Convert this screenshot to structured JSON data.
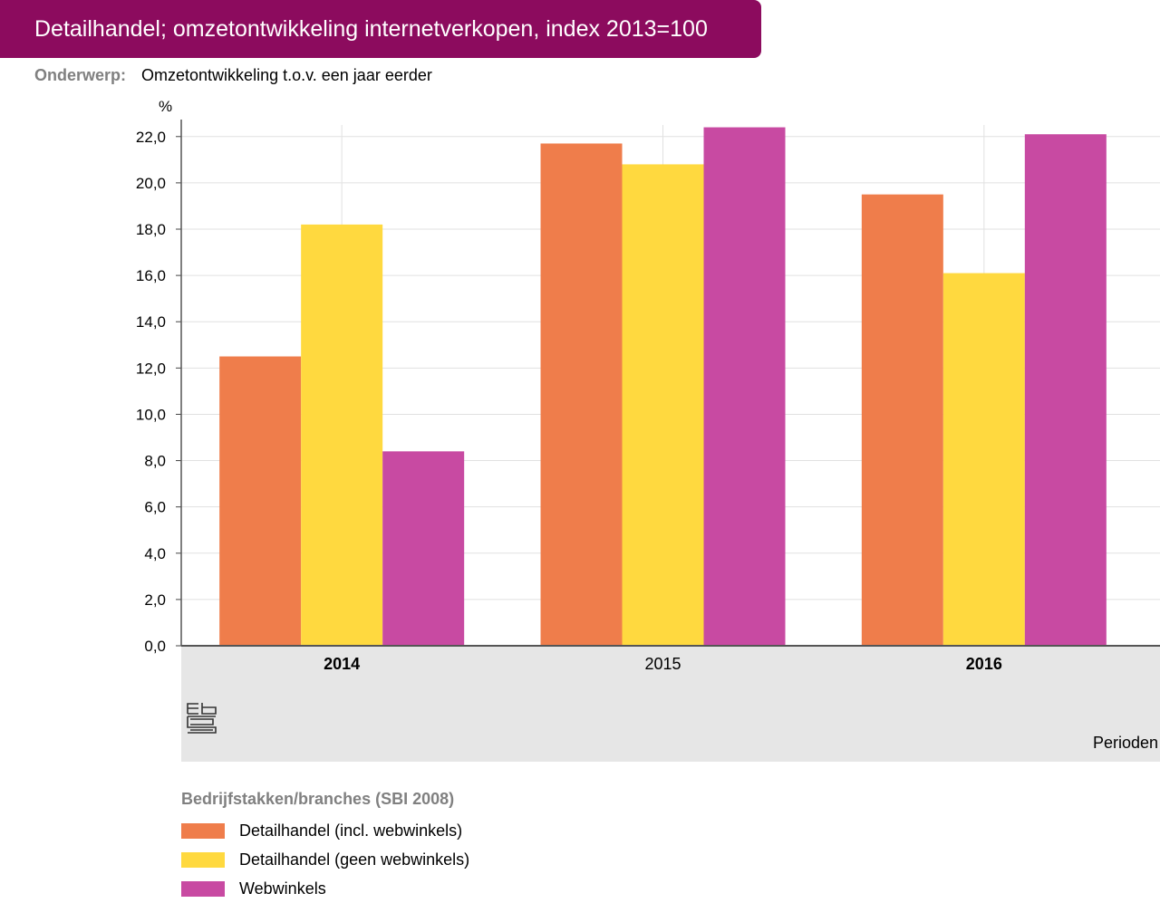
{
  "title": "Detailhandel; omzetontwikkeling internetverkopen, index 2013=100",
  "subject": {
    "label": "Onderwerp:",
    "value": "Omzetontwikkeling t.o.v. een jaar eerder"
  },
  "chart_data": {
    "type": "bar",
    "ylabel": "%",
    "xlabel": "Perioden",
    "ylim": [
      0,
      22.5
    ],
    "yticks": [
      "0,0",
      "2,0",
      "4,0",
      "6,0",
      "8,0",
      "10,0",
      "12,0",
      "14,0",
      "16,0",
      "18,0",
      "20,0",
      "22,0"
    ],
    "ytick_values": [
      0,
      2,
      4,
      6,
      8,
      10,
      12,
      14,
      16,
      18,
      20,
      22
    ],
    "categories": [
      "2014",
      "2015",
      "2016"
    ],
    "category_bold": [
      true,
      false,
      true
    ],
    "grid": true,
    "legend_title": "Bedrijfstakken/branches (SBI 2008)",
    "legend_position": "bottom",
    "series": [
      {
        "name": "Detailhandel (incl. webwinkels)",
        "color": "#ef7d4b",
        "values": [
          12.5,
          21.7,
          19.5
        ]
      },
      {
        "name": "Detailhandel (geen webwinkels)",
        "color": "#ffd93f",
        "values": [
          18.2,
          20.8,
          16.1
        ]
      },
      {
        "name": "Webwinkels",
        "color": "#c84aa2",
        "values": [
          8.4,
          22.4,
          22.1
        ]
      }
    ]
  },
  "logo_icon": "cbs-logo-icon"
}
